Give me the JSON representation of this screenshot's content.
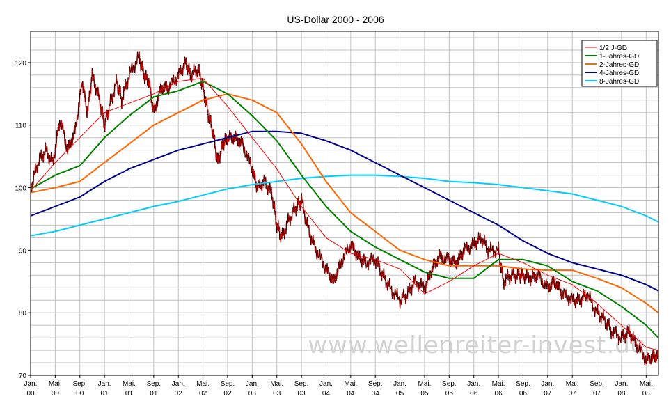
{
  "chart_data": {
    "type": "line",
    "title": "US-Dollar 2000 - 2006",
    "xlabel": "",
    "ylabel": "",
    "ylim": [
      70,
      125
    ],
    "yticks": [
      70,
      80,
      90,
      100,
      110,
      120
    ],
    "xlim": [
      0,
      25.5
    ],
    "grid": true,
    "legend_position": "top-right",
    "x_ticks": [
      {
        "line1": "Jan.",
        "line2": "00"
      },
      {
        "line1": "Mai.",
        "line2": "00"
      },
      {
        "line1": "Sep.",
        "line2": "00"
      },
      {
        "line1": "Jan.",
        "line2": "01"
      },
      {
        "line1": "Mai.",
        "line2": "01"
      },
      {
        "line1": "Sep.",
        "line2": "01"
      },
      {
        "line1": "Jan.",
        "line2": "02"
      },
      {
        "line1": "Mai.",
        "line2": "02"
      },
      {
        "line1": "Sep.",
        "line2": "02"
      },
      {
        "line1": "Jan.",
        "line2": "03"
      },
      {
        "line1": "Mai.",
        "line2": "03"
      },
      {
        "line1": "Sep.",
        "line2": "03"
      },
      {
        "line1": "Jan.",
        "line2": "04"
      },
      {
        "line1": "Mai.",
        "line2": "04"
      },
      {
        "line1": "Sep.",
        "line2": "04"
      },
      {
        "line1": "Jan.",
        "line2": "05"
      },
      {
        "line1": "Mai.",
        "line2": "05"
      },
      {
        "line1": "Sep.",
        "line2": "05"
      },
      {
        "line1": "Jan.",
        "line2": "06"
      },
      {
        "line1": "Mai.",
        "line2": "06"
      },
      {
        "line1": "Sep.",
        "line2": "06"
      },
      {
        "line1": "Jan.",
        "line2": "07"
      },
      {
        "line1": "Mai.",
        "line2": "07"
      },
      {
        "line1": "Sep.",
        "line2": "07"
      },
      {
        "line1": "Jan.",
        "line2": "08"
      },
      {
        "line1": "Mai.",
        "line2": "08"
      }
    ],
    "series": [
      {
        "name": "1/2 J-GD",
        "color": "#ff0000",
        "points": [
          [
            0,
            99.5
          ],
          [
            1,
            104
          ],
          [
            2,
            108
          ],
          [
            3,
            112
          ],
          [
            4,
            113.5
          ],
          [
            5,
            115
          ],
          [
            6,
            117
          ],
          [
            7,
            117.5
          ],
          [
            8,
            113
          ],
          [
            9,
            108
          ],
          [
            10,
            103
          ],
          [
            11,
            97
          ],
          [
            12,
            92
          ],
          [
            13,
            89.5
          ],
          [
            14,
            88.5
          ],
          [
            15,
            87
          ],
          [
            16,
            83
          ],
          [
            17,
            85
          ],
          [
            18,
            87.5
          ],
          [
            19,
            89.5
          ],
          [
            20,
            88
          ],
          [
            21,
            86
          ],
          [
            22,
            84.5
          ],
          [
            23,
            81.5
          ],
          [
            24,
            78
          ],
          [
            25,
            74.5
          ],
          [
            25.5,
            74
          ]
        ]
      },
      {
        "name": "1-Jahres-GD",
        "color": "#008000",
        "points": [
          [
            0,
            99.8
          ],
          [
            1,
            102
          ],
          [
            2,
            103.5
          ],
          [
            3,
            108
          ],
          [
            4,
            111.5
          ],
          [
            5,
            114.5
          ],
          [
            6,
            115.5
          ],
          [
            7,
            117
          ],
          [
            8,
            115
          ],
          [
            9,
            111.5
          ],
          [
            10,
            107.5
          ],
          [
            11,
            102
          ],
          [
            12,
            97
          ],
          [
            13,
            93
          ],
          [
            14,
            90.5
          ],
          [
            15,
            88.5
          ],
          [
            16,
            86.5
          ],
          [
            17,
            85.5
          ],
          [
            18,
            85.5
          ],
          [
            19,
            88.5
          ],
          [
            20,
            88.5
          ],
          [
            21,
            87.5
          ],
          [
            22,
            85
          ],
          [
            23,
            83.5
          ],
          [
            24,
            81
          ],
          [
            25,
            78
          ],
          [
            25.5,
            76
          ]
        ]
      },
      {
        "name": "2-Jahres-GD",
        "color": "#ff6600",
        "points": [
          [
            0,
            99.2
          ],
          [
            1,
            100
          ],
          [
            2,
            101
          ],
          [
            3,
            104
          ],
          [
            4,
            107
          ],
          [
            5,
            110
          ],
          [
            6,
            112
          ],
          [
            7,
            114
          ],
          [
            8,
            115
          ],
          [
            9,
            114
          ],
          [
            10,
            112
          ],
          [
            11,
            107
          ],
          [
            12,
            101
          ],
          [
            13,
            96
          ],
          [
            14,
            93
          ],
          [
            15,
            90
          ],
          [
            16,
            88.5
          ],
          [
            17,
            87.5
          ],
          [
            18,
            87.5
          ],
          [
            19,
            87.5
          ],
          [
            20,
            87
          ],
          [
            21,
            86.8
          ],
          [
            22,
            86.8
          ],
          [
            23,
            85.5
          ],
          [
            24,
            84
          ],
          [
            25,
            81.5
          ],
          [
            25.5,
            80
          ]
        ]
      },
      {
        "name": "4-Jahres-GD",
        "color": "#00008b",
        "points": [
          [
            0,
            95.5
          ],
          [
            1,
            97
          ],
          [
            2,
            98.5
          ],
          [
            3,
            101
          ],
          [
            4,
            103
          ],
          [
            5,
            104.5
          ],
          [
            6,
            106
          ],
          [
            7,
            107
          ],
          [
            8,
            108
          ],
          [
            9,
            109
          ],
          [
            10,
            109
          ],
          [
            11,
            108.7
          ],
          [
            12,
            107.5
          ],
          [
            13,
            106
          ],
          [
            14,
            104
          ],
          [
            15,
            102
          ],
          [
            16,
            100
          ],
          [
            17,
            98
          ],
          [
            18,
            96
          ],
          [
            19,
            94
          ],
          [
            20,
            91.5
          ],
          [
            21,
            89.5
          ],
          [
            22,
            88
          ],
          [
            23,
            87
          ],
          [
            24,
            86
          ],
          [
            25,
            84.5
          ],
          [
            25.5,
            83.5
          ]
        ]
      },
      {
        "name": "8-Jahres-GD",
        "color": "#00ccff",
        "points": [
          [
            0,
            92.3
          ],
          [
            1,
            93
          ],
          [
            2,
            94
          ],
          [
            3,
            95
          ],
          [
            4,
            96
          ],
          [
            5,
            97
          ],
          [
            6,
            97.8
          ],
          [
            7,
            98.8
          ],
          [
            8,
            99.8
          ],
          [
            9,
            100.5
          ],
          [
            10,
            101
          ],
          [
            11,
            101.5
          ],
          [
            12,
            101.8
          ],
          [
            13,
            102
          ],
          [
            14,
            102
          ],
          [
            15,
            101.8
          ],
          [
            16,
            101.5
          ],
          [
            17,
            101
          ],
          [
            18,
            100.8
          ],
          [
            19,
            100.5
          ],
          [
            20,
            100
          ],
          [
            21,
            99.5
          ],
          [
            22,
            99
          ],
          [
            23,
            98
          ],
          [
            24,
            97
          ],
          [
            25,
            95.5
          ],
          [
            25.5,
            94.5
          ]
        ]
      }
    ],
    "price_series": {
      "name": "Kurs",
      "color": "#000000",
      "points": [
        [
          0,
          100
        ],
        [
          0.3,
          104
        ],
        [
          0.6,
          106
        ],
        [
          0.9,
          104
        ],
        [
          1.2,
          111
        ],
        [
          1.5,
          106
        ],
        [
          1.8,
          109
        ],
        [
          2.1,
          117
        ],
        [
          2.3,
          112
        ],
        [
          2.5,
          118
        ],
        [
          2.8,
          114
        ],
        [
          3,
          110
        ],
        [
          3.2,
          113
        ],
        [
          3.5,
          117
        ],
        [
          3.7,
          114
        ],
        [
          4,
          118
        ],
        [
          4.4,
          121
        ],
        [
          4.6,
          118
        ],
        [
          4.8,
          117
        ],
        [
          5,
          112
        ],
        [
          5.3,
          116
        ],
        [
          5.6,
          116
        ],
        [
          6,
          118
        ],
        [
          6.3,
          120
        ],
        [
          6.5,
          118
        ],
        [
          6.8,
          119
        ],
        [
          7,
          116
        ],
        [
          7.2,
          112
        ],
        [
          7.4,
          109
        ],
        [
          7.6,
          104
        ],
        [
          7.8,
          107
        ],
        [
          8,
          108
        ],
        [
          8.3,
          108
        ],
        [
          8.6,
          107
        ],
        [
          9,
          103
        ],
        [
          9.2,
          100
        ],
        [
          9.5,
          101
        ],
        [
          9.8,
          99
        ],
        [
          10,
          94
        ],
        [
          10.2,
          92
        ],
        [
          10.5,
          95
        ],
        [
          10.8,
          97
        ],
        [
          11,
          98
        ],
        [
          11.3,
          93
        ],
        [
          11.6,
          90
        ],
        [
          12,
          87
        ],
        [
          12.3,
          85
        ],
        [
          12.6,
          88
        ],
        [
          13,
          91
        ],
        [
          13.3,
          89
        ],
        [
          13.6,
          88
        ],
        [
          14,
          88.5
        ],
        [
          14.3,
          86
        ],
        [
          14.6,
          84
        ],
        [
          15,
          82
        ],
        [
          15.3,
          83
        ],
        [
          15.6,
          85
        ],
        [
          16,
          84
        ],
        [
          16.3,
          87
        ],
        [
          16.6,
          89
        ],
        [
          17,
          88.5
        ],
        [
          17.3,
          88
        ],
        [
          17.6,
          90
        ],
        [
          18,
          91
        ],
        [
          18.3,
          92
        ],
        [
          18.6,
          90
        ],
        [
          19,
          90
        ],
        [
          19.2,
          85
        ],
        [
          19.5,
          86
        ],
        [
          19.8,
          86
        ],
        [
          20,
          86
        ],
        [
          20.3,
          85.5
        ],
        [
          20.6,
          86
        ],
        [
          21,
          84
        ],
        [
          21.3,
          85
        ],
        [
          21.6,
          83
        ],
        [
          22,
          82
        ],
        [
          22.3,
          82
        ],
        [
          22.6,
          83
        ],
        [
          23,
          80
        ],
        [
          23.3,
          79
        ],
        [
          23.6,
          77
        ],
        [
          24,
          76
        ],
        [
          24.3,
          77
        ],
        [
          24.6,
          75
        ],
        [
          25,
          72.5
        ],
        [
          25.3,
          73
        ],
        [
          25.5,
          73
        ]
      ]
    },
    "watermark": "www.wellenreiter-invest.de"
  }
}
